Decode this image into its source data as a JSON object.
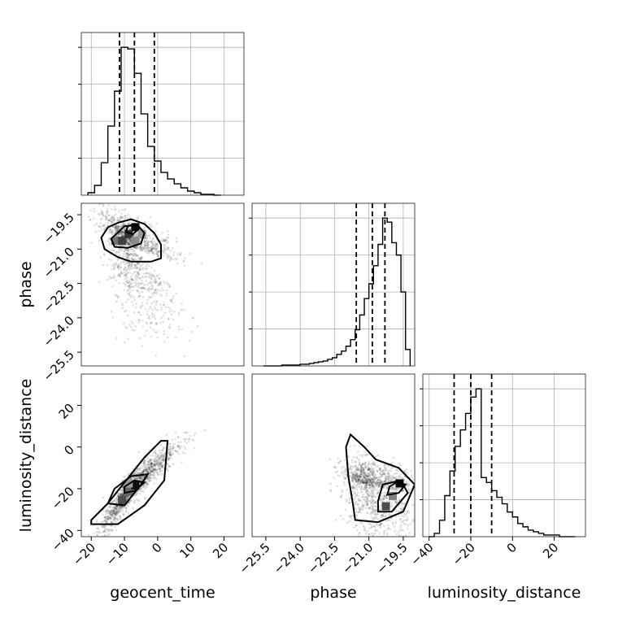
{
  "chart_data": {
    "type": "corner",
    "parameters": [
      "geocent_time",
      "phase",
      "luminosity_distance"
    ],
    "axis_labels": {
      "geocent_time": "geocent_time",
      "phase": "phase",
      "luminosity_distance": "luminosity_distance"
    },
    "ranges": {
      "geocent_time": [
        -23,
        26
      ],
      "phase": [
        -26.1,
        -19.0
      ],
      "luminosity_distance": [
        -43,
        35
      ]
    },
    "ticks": {
      "geocent_time": [
        -20,
        -10,
        0,
        10,
        20
      ],
      "phase": [
        -25.5,
        -24.0,
        -22.5,
        -21.0,
        -19.5
      ],
      "luminosity_distance": [
        -40,
        -20,
        0,
        20
      ]
    },
    "tick_labels": {
      "geocent_time": [
        "−20",
        "−10",
        "0",
        "10",
        "20"
      ],
      "phase": [
        "−25.5",
        "−24.0",
        "−22.5",
        "−21.0",
        "−19.5"
      ],
      "luminosity_distance": [
        "−40",
        "−20",
        "0",
        "20"
      ]
    },
    "quantiles": {
      "geocent_time": [
        -11.5,
        -7.0,
        -1.0
      ],
      "phase": [
        -21.55,
        -20.85,
        -20.3
      ],
      "luminosity_distance": [
        -28,
        -20,
        -10
      ]
    },
    "histograms": {
      "geocent_time": {
        "bin_edges": [
          -21,
          -19,
          -17,
          -15,
          -13,
          -11,
          -9,
          -7,
          -5,
          -3,
          -1,
          1,
          3,
          5,
          7,
          9,
          11,
          13,
          15,
          17,
          19
        ],
        "counts": [
          3,
          12,
          40,
          85,
          128,
          182,
          180,
          150,
          100,
          60,
          42,
          28,
          20,
          14,
          9,
          5,
          3,
          1,
          1,
          0
        ]
      },
      "phase": {
        "bin_edges": [
          -25.6,
          -25.4,
          -25.2,
          -25.0,
          -24.8,
          -24.6,
          -24.4,
          -24.2,
          -24.0,
          -23.8,
          -23.6,
          -23.4,
          -23.2,
          -23.0,
          -22.8,
          -22.6,
          -22.4,
          -22.2,
          -22.0,
          -21.8,
          -21.6,
          -21.4,
          -21.2,
          -21.0,
          -20.8,
          -20.6,
          -20.4,
          -20.2,
          -20.0,
          -19.8,
          -19.6,
          -19.4,
          -19.2
        ],
        "counts": [
          0,
          0,
          0,
          0,
          1,
          1,
          1,
          1,
          2,
          2,
          3,
          4,
          5,
          6,
          8,
          10,
          14,
          18,
          24,
          32,
          44,
          62,
          82,
          100,
          122,
          148,
          180,
          175,
          150,
          135,
          90,
          20
        ]
      },
      "luminosity_distance": {
        "bin_edges": [
          -40,
          -37.5,
          -35,
          -32.5,
          -30,
          -27.5,
          -25,
          -22.5,
          -20,
          -17.5,
          -15,
          -12.5,
          -10,
          -7.5,
          -5,
          -2.5,
          0,
          2.5,
          5,
          7.5,
          10,
          12.5,
          15,
          17.5,
          20,
          22.5,
          25,
          27.5,
          30
        ],
        "counts": [
          0,
          2,
          10,
          25,
          40,
          55,
          65,
          75,
          85,
          90,
          36,
          33,
          28,
          24,
          20,
          15,
          12,
          8,
          6,
          4,
          3,
          2,
          1,
          1,
          1,
          0,
          0,
          0
        ]
      }
    },
    "scatter_model": {
      "geocent_time_phase": {
        "x_center": -8,
        "y_center": -20.9,
        "x_sd": 5,
        "y_sd": 1.1,
        "corr": -0.55
      },
      "geocent_time_luminosity_distance": {
        "x_center": -8,
        "y_center": -19,
        "x_sd": 5,
        "y_sd": 10,
        "corr": 0.93
      },
      "phase_luminosity_distance": {
        "x_center": -20.8,
        "y_center": -19,
        "x_sd": 0.8,
        "y_sd": 10,
        "corr": -0.35
      }
    },
    "contours": {
      "geocent_time_phase": [
        [
          [
            -17,
            -20.5
          ],
          [
            -15,
            -20.05
          ],
          [
            -12,
            -19.85
          ],
          [
            -8,
            -19.7
          ],
          [
            -4,
            -19.9
          ],
          [
            -1,
            -20.3
          ],
          [
            1,
            -20.8
          ],
          [
            1,
            -21.4
          ],
          [
            -2,
            -21.55
          ],
          [
            -8,
            -21.55
          ],
          [
            -12,
            -21.35
          ],
          [
            -16,
            -21.0
          ],
          [
            -17,
            -20.5
          ]
        ],
        [
          [
            -14,
            -20.55
          ],
          [
            -10,
            -20.0
          ],
          [
            -6,
            -19.95
          ],
          [
            -4,
            -20.3
          ],
          [
            -5,
            -20.75
          ],
          [
            -9,
            -20.95
          ],
          [
            -13,
            -20.9
          ],
          [
            -14,
            -20.55
          ]
        ],
        [
          [
            -9,
            -20.0
          ],
          [
            -7,
            -19.9
          ],
          [
            -5.5,
            -20.1
          ],
          [
            -7.5,
            -20.35
          ],
          [
            -9.5,
            -20.25
          ],
          [
            -9,
            -20.0
          ]
        ]
      ],
      "geocent_time_luminosity_distance": [
        [
          [
            -20,
            -37
          ],
          [
            -12,
            -37
          ],
          [
            -4,
            -28
          ],
          [
            2,
            -16
          ],
          [
            3,
            3
          ],
          [
            1,
            3
          ],
          [
            -4,
            -5
          ],
          [
            -10,
            -17
          ],
          [
            -15,
            -27
          ],
          [
            -20,
            -35
          ],
          [
            -20,
            -37
          ]
        ],
        [
          [
            -15,
            -27
          ],
          [
            -10,
            -28
          ],
          [
            -5,
            -18
          ],
          [
            -3,
            -13
          ],
          [
            -8,
            -14
          ],
          [
            -13,
            -20
          ],
          [
            -15,
            -27
          ]
        ],
        [
          [
            -10,
            -22
          ],
          [
            -7,
            -21
          ],
          [
            -4,
            -17
          ],
          [
            -7,
            -16
          ],
          [
            -10,
            -19
          ],
          [
            -10,
            -22
          ]
        ]
      ],
      "phase_luminosity_distance": [
        [
          [
            -21.6,
            -35
          ],
          [
            -20.6,
            -36
          ],
          [
            -19.5,
            -31
          ],
          [
            -19.0,
            -18
          ],
          [
            -19.7,
            -10
          ],
          [
            -20.7,
            -6
          ],
          [
            -21.2,
            0
          ],
          [
            -21.8,
            6
          ],
          [
            -22.0,
            0
          ],
          [
            -21.9,
            -14
          ],
          [
            -21.7,
            -27
          ],
          [
            -21.6,
            -35
          ]
        ],
        [
          [
            -20.6,
            -31
          ],
          [
            -20.0,
            -31
          ],
          [
            -19.3,
            -22
          ],
          [
            -19.6,
            -16
          ],
          [
            -20.4,
            -18
          ],
          [
            -20.6,
            -26
          ],
          [
            -20.6,
            -31
          ]
        ],
        [
          [
            -20.2,
            -23
          ],
          [
            -19.7,
            -22
          ],
          [
            -19.4,
            -18
          ],
          [
            -19.8,
            -17
          ],
          [
            -20.1,
            -19
          ],
          [
            -20.2,
            -23
          ]
        ]
      ]
    },
    "density_blocks": {
      "geocent_time_phase": [
        {
          "x": -13,
          "y": -20.6,
          "level": 0.55
        },
        {
          "x": -11,
          "y": -20.6,
          "level": 0.75
        },
        {
          "x": -9,
          "y": -20.3,
          "level": 0.8
        },
        {
          "x": -7,
          "y": -20.0,
          "level": 0.95
        },
        {
          "x": -7,
          "y": -20.6,
          "level": 0.45
        },
        {
          "x": -5,
          "y": -20.3,
          "level": 0.4
        }
      ],
      "geocent_time_luminosity_distance": [
        {
          "x": -11,
          "y": -25,
          "level": 0.7
        },
        {
          "x": -9,
          "y": -21,
          "level": 0.6
        },
        {
          "x": -7,
          "y": -18,
          "level": 0.95
        },
        {
          "x": -9,
          "y": -17,
          "level": 0.4
        }
      ],
      "phase_luminosity_distance": [
        {
          "x": -20.3,
          "y": -28,
          "level": 0.7
        },
        {
          "x": -20.0,
          "y": -23,
          "level": 0.5
        },
        {
          "x": -19.7,
          "y": -17,
          "level": 0.95
        }
      ]
    },
    "grid": true
  }
}
